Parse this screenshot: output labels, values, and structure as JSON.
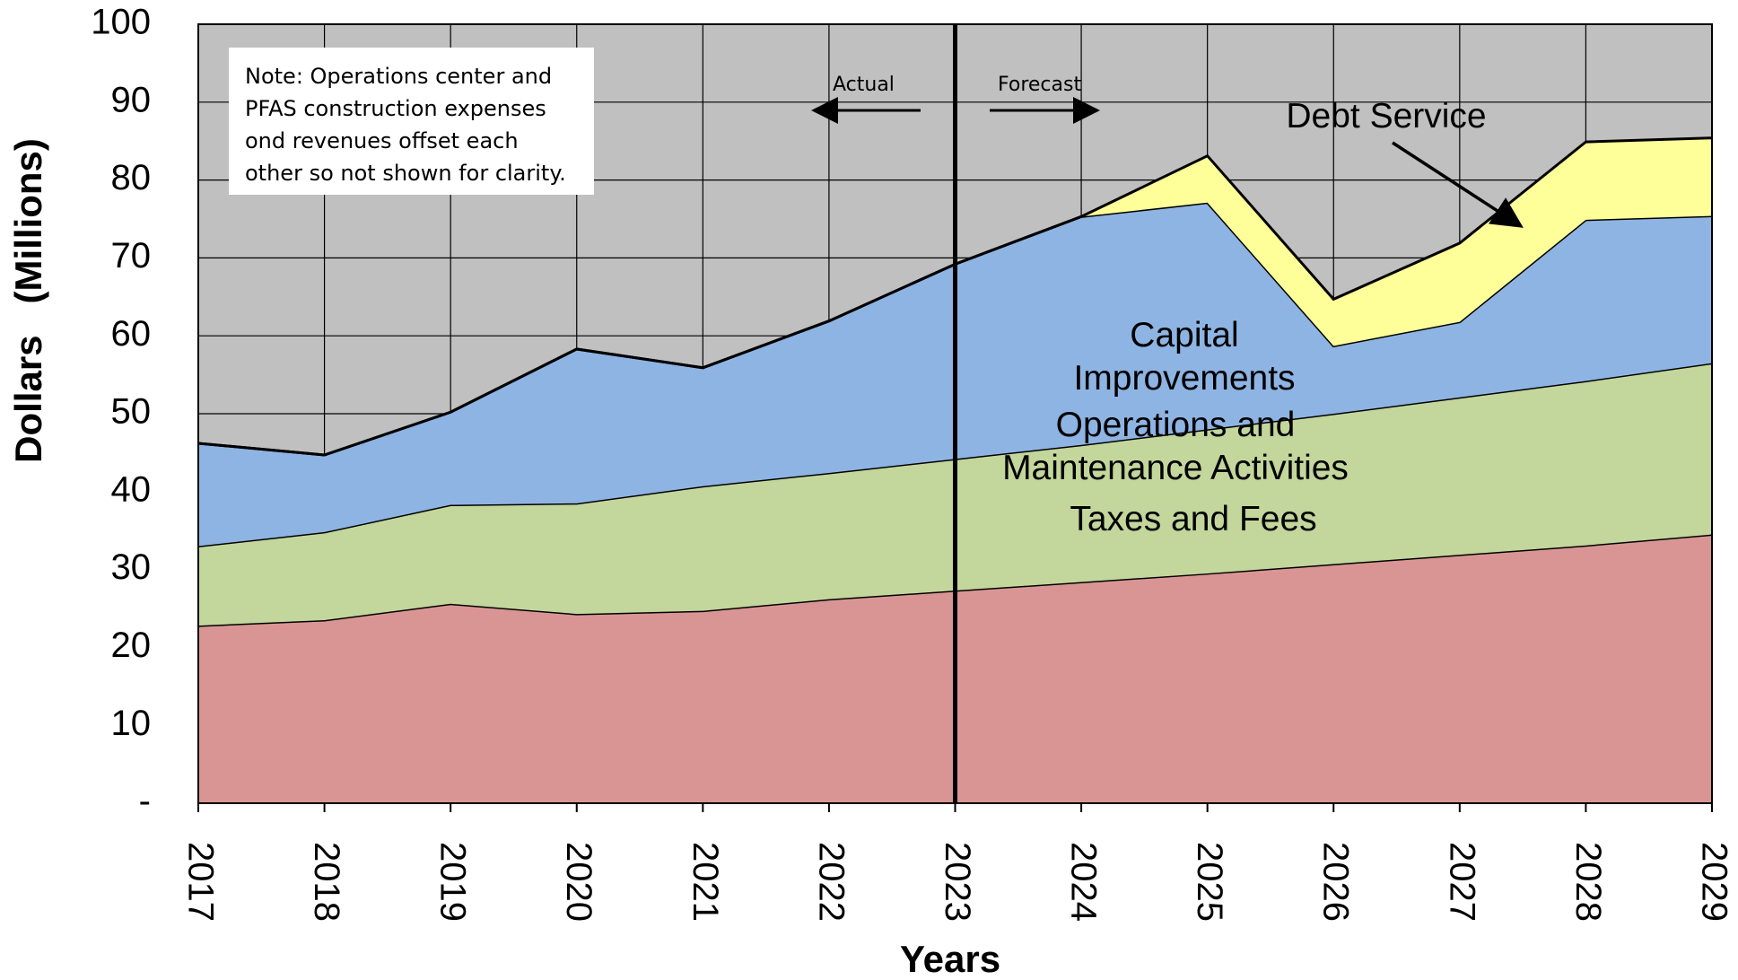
{
  "chart_data": {
    "type": "stacked_area",
    "xlabel": "Years",
    "ylabel": "Dollars   (Millions)",
    "categories": [
      "2017",
      "2018",
      "2019",
      "2020",
      "2021",
      "2022",
      "2023",
      "2024",
      "2025",
      "2026",
      "2027",
      "2028",
      "2029"
    ],
    "series": [
      {
        "name": "Operations and Maintenance Activities",
        "color": "#d99594",
        "values": [
          22.8,
          23.5,
          25.6,
          24.3,
          24.7,
          26.2,
          27.3,
          28.4,
          29.5,
          30.7,
          31.9,
          33.1,
          34.5
        ]
      },
      {
        "name": "Taxes and Fees",
        "color": "#c3d69b",
        "values": [
          10.2,
          11.3,
          12.7,
          14.2,
          16.0,
          16.2,
          16.9,
          17.6,
          18.5,
          19.3,
          20.2,
          21.1,
          22.0
        ]
      },
      {
        "name": "Capital Improvements",
        "color": "#8eb4e3",
        "values": [
          13.2,
          9.9,
          11.9,
          19.8,
          15.2,
          19.5,
          25.0,
          29.3,
          29.1,
          8.7,
          9.7,
          20.7,
          18.9
        ]
      },
      {
        "name": "Debt Service",
        "color": "#ffff99",
        "values": [
          0,
          0,
          0,
          0,
          0,
          0,
          0,
          0,
          6.0,
          6.0,
          10.1,
          10.0,
          10.0
        ]
      }
    ],
    "ylim": [
      0,
      100
    ],
    "yticks": [
      {
        "value": 0,
        "label": "-"
      },
      10,
      20,
      30,
      40,
      50,
      60,
      70,
      80,
      90,
      100
    ],
    "grid": true,
    "annotations": [
      "Note: Operations center and PFAS construction expenses ond revenues offset each other so not shown for clarity.",
      "Actual",
      "Forecast"
    ],
    "divider": "2023"
  }
}
